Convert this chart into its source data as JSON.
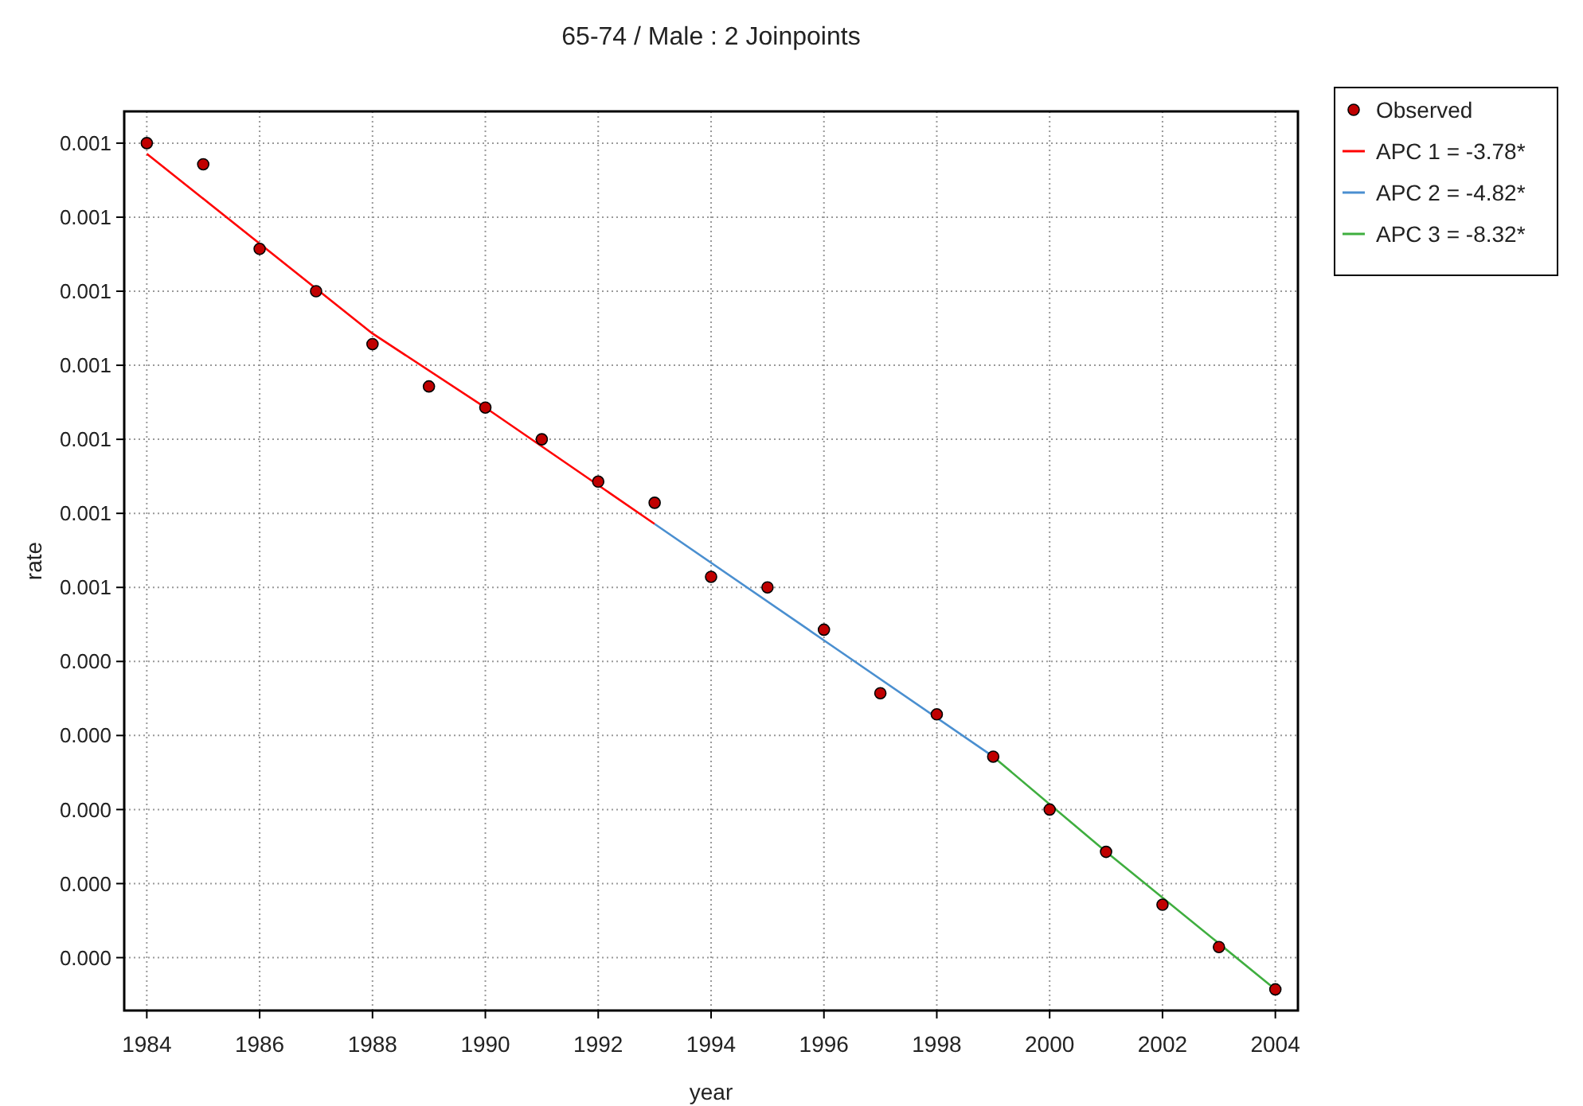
{
  "chart_data": {
    "type": "line",
    "title": "65-74 / Male : 2 Joinpoints",
    "xlabel": "year",
    "ylabel": "rate",
    "xlim": [
      1983.6,
      2004.4
    ],
    "xticks": [
      1984,
      1986,
      1988,
      1990,
      1992,
      1994,
      1996,
      1998,
      2000,
      2002,
      2004
    ],
    "ylim": [
      0.00013,
      0.00098
    ],
    "yticks": [
      {
        "value": 0.00018,
        "label": "0.000"
      },
      {
        "value": 0.00025,
        "label": "0.000"
      },
      {
        "value": 0.00032,
        "label": "0.000"
      },
      {
        "value": 0.00039,
        "label": "0.000"
      },
      {
        "value": 0.00046,
        "label": "0.000"
      },
      {
        "value": 0.00053,
        "label": "0.001"
      },
      {
        "value": 0.0006,
        "label": "0.001"
      },
      {
        "value": 0.00067,
        "label": "0.001"
      },
      {
        "value": 0.00074,
        "label": "0.001"
      },
      {
        "value": 0.00081,
        "label": "0.001"
      },
      {
        "value": 0.00088,
        "label": "0.001"
      },
      {
        "value": 0.00095,
        "label": "0.001"
      }
    ],
    "grid": true,
    "legend": "top right",
    "series": [
      {
        "name": "Observed",
        "type": "scatter",
        "marker": "circle",
        "color": "#c00000",
        "x": [
          1984,
          1985,
          1986,
          1987,
          1988,
          1989,
          1990,
          1991,
          1992,
          1993,
          1994,
          1995,
          1996,
          1997,
          1998,
          1999,
          2000,
          2001,
          2002,
          2003,
          2004
        ],
        "values": [
          0.00095,
          0.00093,
          0.00085,
          0.00081,
          0.00076,
          0.00072,
          0.0007,
          0.00067,
          0.00063,
          0.00061,
          0.00054,
          0.00053,
          0.00049,
          0.00043,
          0.00041,
          0.00037,
          0.00032,
          0.00028,
          0.00023,
          0.00019,
          0.00015
        ]
      },
      {
        "name": "APC 1 = -3.78*",
        "marker": "none",
        "color": "#ff0000",
        "x": [
          1984,
          1988,
          1990,
          1993
        ],
        "values": [
          0.00094,
          0.00077,
          0.0007,
          0.00059
        ]
      },
      {
        "name": "APC 2 = -4.82*",
        "marker": "none",
        "color": "#4a8fd0",
        "x": [
          1993,
          1996,
          1999
        ],
        "values": [
          0.00059,
          0.00048,
          0.00037
        ]
      },
      {
        "name": "APC 3 = -8.32*",
        "marker": "none",
        "color": "#3fae3f",
        "x": [
          1999,
          2001,
          2004
        ],
        "values": [
          0.00037,
          0.00028,
          0.00015
        ]
      }
    ]
  }
}
